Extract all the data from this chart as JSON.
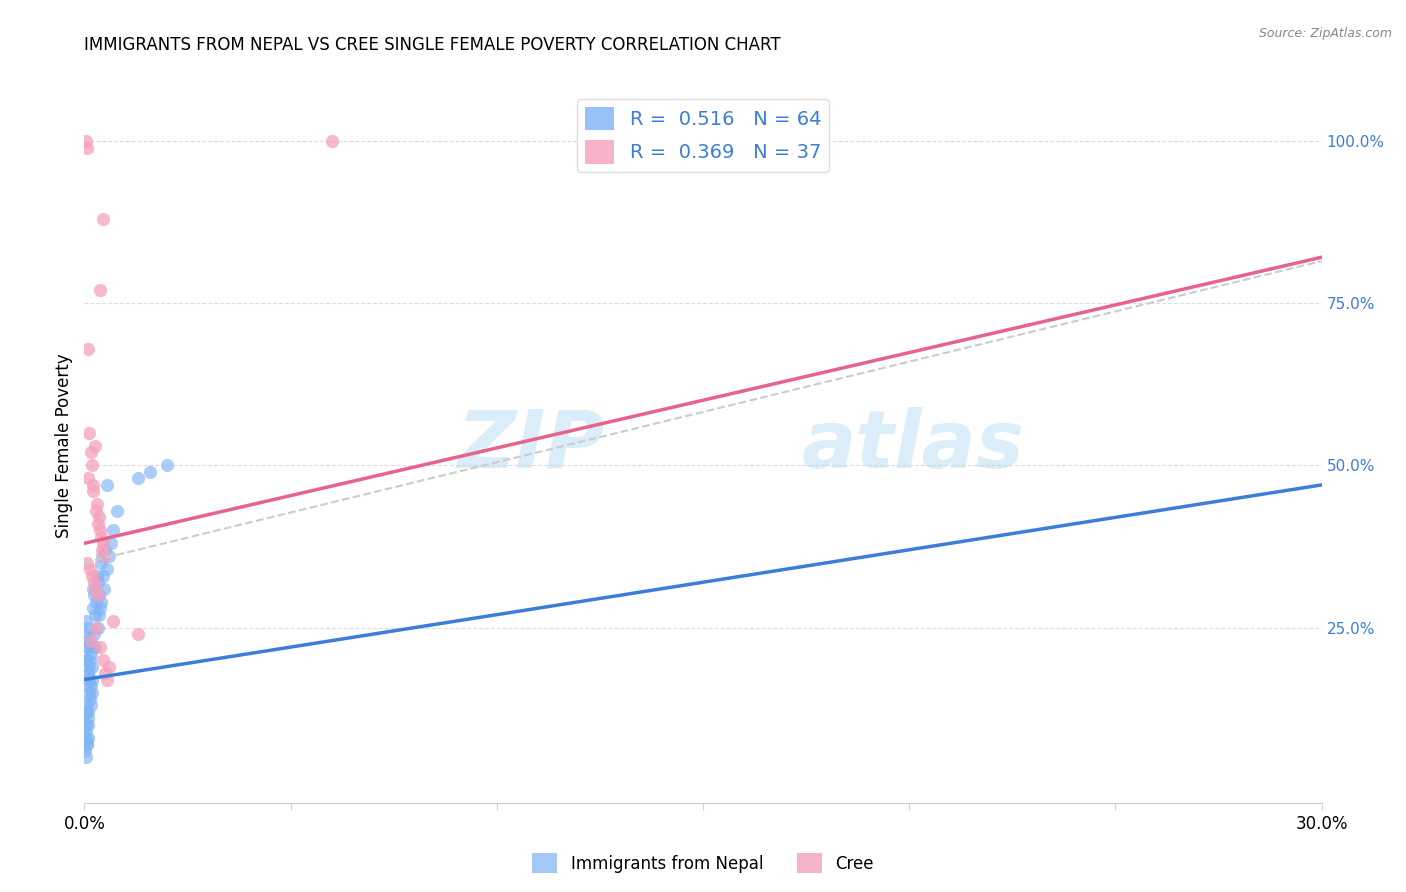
{
  "title": "IMMIGRANTS FROM NEPAL VS CREE SINGLE FEMALE POVERTY CORRELATION CHART",
  "source": "Source: ZipAtlas.com",
  "ylabel": "Single Female Poverty",
  "right_yticks": [
    "100.0%",
    "75.0%",
    "50.0%",
    "25.0%"
  ],
  "right_ytick_vals": [
    1.0,
    0.75,
    0.5,
    0.25
  ],
  "legend_nepal": {
    "R": "0.516",
    "N": "64"
  },
  "legend_cree": {
    "R": "0.369",
    "N": "37"
  },
  "watermark_zip": "ZIP",
  "watermark_atlas": "atlas",
  "xlim": [
    0.0,
    0.3
  ],
  "ylim": [
    -0.02,
    1.08
  ],
  "nepal_color": "#7EB3F5",
  "cree_color": "#F5A0BC",
  "nepal_line_color": "#3B7DD8",
  "cree_line_color": "#E8638A",
  "dashed_line_color": "#CCCCCC",
  "background_color": "#FFFFFF",
  "nepal_points": [
    [
      0.0005,
      0.2
    ],
    [
      0.001,
      0.22
    ],
    [
      0.0008,
      0.18
    ],
    [
      0.0015,
      0.21
    ],
    [
      0.0006,
      0.23
    ],
    [
      0.0012,
      0.19
    ],
    [
      0.0007,
      0.16
    ],
    [
      0.0018,
      0.17
    ],
    [
      0.0011,
      0.15
    ],
    [
      0.0005,
      0.24
    ],
    [
      0.002,
      0.22
    ],
    [
      0.0014,
      0.2
    ],
    [
      0.0009,
      0.18
    ],
    [
      0.0004,
      0.26
    ],
    [
      0.0022,
      0.28
    ],
    [
      0.0006,
      0.13
    ],
    [
      0.0013,
      0.14
    ],
    [
      0.0016,
      0.16
    ],
    [
      0.0023,
      0.3
    ],
    [
      0.0021,
      0.31
    ],
    [
      0.0025,
      0.27
    ],
    [
      0.0028,
      0.29
    ],
    [
      0.0003,
      0.22
    ],
    [
      0.001,
      0.25
    ],
    [
      0.003,
      0.33
    ],
    [
      0.0032,
      0.32
    ],
    [
      0.0035,
      0.3
    ],
    [
      0.0038,
      0.28
    ],
    [
      0.004,
      0.35
    ],
    [
      0.0042,
      0.36
    ],
    [
      0.0045,
      0.33
    ],
    [
      0.005,
      0.37
    ],
    [
      0.0004,
      0.1
    ],
    [
      0.0003,
      0.09
    ],
    [
      0.0008,
      0.11
    ],
    [
      0.0015,
      0.13
    ],
    [
      0.0005,
      0.12
    ],
    [
      0.001,
      0.08
    ],
    [
      0.0006,
      0.07
    ],
    [
      0.0009,
      0.12
    ],
    [
      0.0018,
      0.15
    ],
    [
      0.0007,
      0.2
    ],
    [
      0.0011,
      0.17
    ],
    [
      0.0019,
      0.19
    ],
    [
      0.0024,
      0.24
    ],
    [
      0.0027,
      0.22
    ],
    [
      0.0033,
      0.25
    ],
    [
      0.0036,
      0.27
    ],
    [
      0.0041,
      0.29
    ],
    [
      0.0048,
      0.31
    ],
    [
      0.0055,
      0.34
    ],
    [
      0.006,
      0.36
    ],
    [
      0.0065,
      0.38
    ],
    [
      0.007,
      0.4
    ],
    [
      0.008,
      0.43
    ],
    [
      0.0055,
      0.47
    ],
    [
      0.02,
      0.5
    ],
    [
      0.013,
      0.48
    ],
    [
      0.016,
      0.49
    ],
    [
      0.0002,
      0.06
    ],
    [
      0.0003,
      0.08
    ],
    [
      0.0008,
      0.1
    ],
    [
      0.0006,
      0.07
    ],
    [
      0.0004,
      0.05
    ]
  ],
  "cree_points": [
    [
      0.0005,
      1.0
    ],
    [
      0.06,
      1.0
    ],
    [
      0.0008,
      0.68
    ],
    [
      0.0012,
      0.55
    ],
    [
      0.0015,
      0.52
    ],
    [
      0.0018,
      0.5
    ],
    [
      0.001,
      0.48
    ],
    [
      0.002,
      0.47
    ],
    [
      0.0022,
      0.46
    ],
    [
      0.0025,
      0.53
    ],
    [
      0.003,
      0.44
    ],
    [
      0.0028,
      0.43
    ],
    [
      0.0035,
      0.42
    ],
    [
      0.0032,
      0.41
    ],
    [
      0.0038,
      0.4
    ],
    [
      0.004,
      0.39
    ],
    [
      0.0045,
      0.38
    ],
    [
      0.0042,
      0.37
    ],
    [
      0.0048,
      0.36
    ],
    [
      0.0007,
      0.35
    ],
    [
      0.0014,
      0.34
    ],
    [
      0.0019,
      0.33
    ],
    [
      0.0023,
      0.32
    ],
    [
      0.0027,
      0.31
    ],
    [
      0.0033,
      0.3
    ],
    [
      0.0038,
      0.22
    ],
    [
      0.0044,
      0.2
    ],
    [
      0.005,
      0.18
    ],
    [
      0.0055,
      0.17
    ],
    [
      0.006,
      0.19
    ],
    [
      0.0038,
      0.77
    ],
    [
      0.007,
      0.26
    ],
    [
      0.0028,
      0.25
    ],
    [
      0.0016,
      0.23
    ],
    [
      0.0044,
      0.88
    ],
    [
      0.013,
      0.24
    ],
    [
      0.0006,
      0.99
    ]
  ],
  "nepal_line": {
    "slope": 1.0,
    "intercept": 0.17
  },
  "cree_line": {
    "slope": 1.47,
    "intercept": 0.38
  },
  "dashed_line": {
    "slope": 1.55,
    "intercept": 0.35
  }
}
